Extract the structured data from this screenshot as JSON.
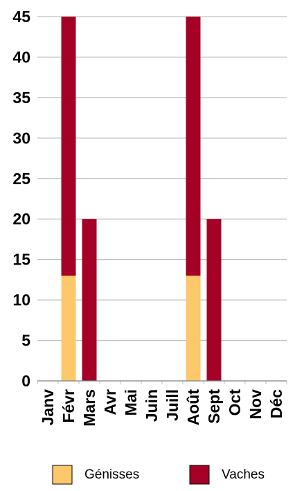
{
  "chart_data": {
    "type": "bar",
    "stacked": true,
    "categories": [
      "Janv",
      "Févr",
      "Mars",
      "Avr",
      "Mai",
      "Juin",
      "Juill",
      "Août",
      "Sept",
      "Oct",
      "Nov",
      "Déc"
    ],
    "series": [
      {
        "name": "Génisses",
        "color": "#FDC86A",
        "values": [
          0,
          13,
          0,
          0,
          0,
          0,
          0,
          13,
          0,
          0,
          0,
          0
        ]
      },
      {
        "name": "Vaches",
        "color": "#A50026",
        "values": [
          0,
          32,
          20,
          0,
          0,
          0,
          0,
          32,
          20,
          0,
          0,
          0
        ]
      }
    ],
    "ylim": [
      0,
      45
    ],
    "yticks": [
      0,
      5,
      10,
      15,
      20,
      25,
      30,
      35,
      40,
      45
    ],
    "grid": true,
    "gridColor": "#C0C0C0",
    "legend_position": "bottom"
  }
}
